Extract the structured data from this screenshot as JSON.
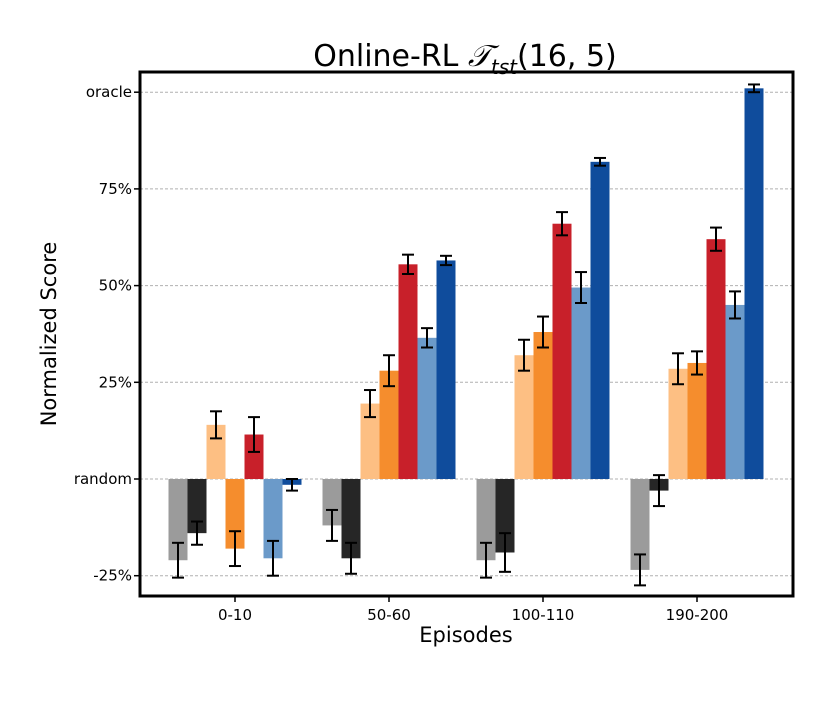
{
  "chart_data": {
    "type": "bar",
    "title": "Online-RL ",
    "title_math": "𝒯",
    "title_sub": "tst",
    "title_args": "(16, 5)",
    "xlabel": "Episodes",
    "ylabel": "Normalized Score",
    "categories": [
      "0-10",
      "50-60",
      "100-110",
      "190-200"
    ],
    "y_ticks": [
      {
        "value": -25,
        "label": "-25%"
      },
      {
        "value": 0,
        "label": "random"
      },
      {
        "value": 25,
        "label": "25%"
      },
      {
        "value": 50,
        "label": "50%"
      },
      {
        "value": 75,
        "label": "75%"
      },
      {
        "value": 100,
        "label": "oracle"
      }
    ],
    "ylim": [
      -30,
      104
    ],
    "grid": true,
    "series": [
      {
        "color": "#9b9b9b",
        "values": [
          -21,
          -12,
          -21,
          -23.5
        ],
        "errors": [
          4.5,
          4,
          4.5,
          4
        ]
      },
      {
        "color": "#262626",
        "values": [
          -14,
          -20.5,
          -19,
          -3
        ],
        "errors": [
          3,
          4,
          5,
          4
        ]
      },
      {
        "color": "#fdbf83",
        "values": [
          14,
          19.5,
          32,
          28.5
        ],
        "errors": [
          3.5,
          3.5,
          4,
          4
        ]
      },
      {
        "color": "#f58d2d",
        "values": [
          -18,
          28,
          38,
          30
        ],
        "errors": [
          4.5,
          4,
          4,
          3
        ]
      },
      {
        "color": "#c8202a",
        "values": [
          11.5,
          55.5,
          66,
          62
        ],
        "errors": [
          4.5,
          2.5,
          3,
          3
        ]
      },
      {
        "color": "#6b9ac9",
        "values": [
          -20.5,
          36.5,
          49.5,
          45
        ],
        "errors": [
          4.5,
          2.5,
          4,
          3.5
        ]
      },
      {
        "color": "#0f4c9c",
        "values": [
          -1.5,
          56.5,
          82,
          101
        ],
        "errors": [
          1.5,
          1.2,
          1,
          1
        ]
      }
    ]
  }
}
